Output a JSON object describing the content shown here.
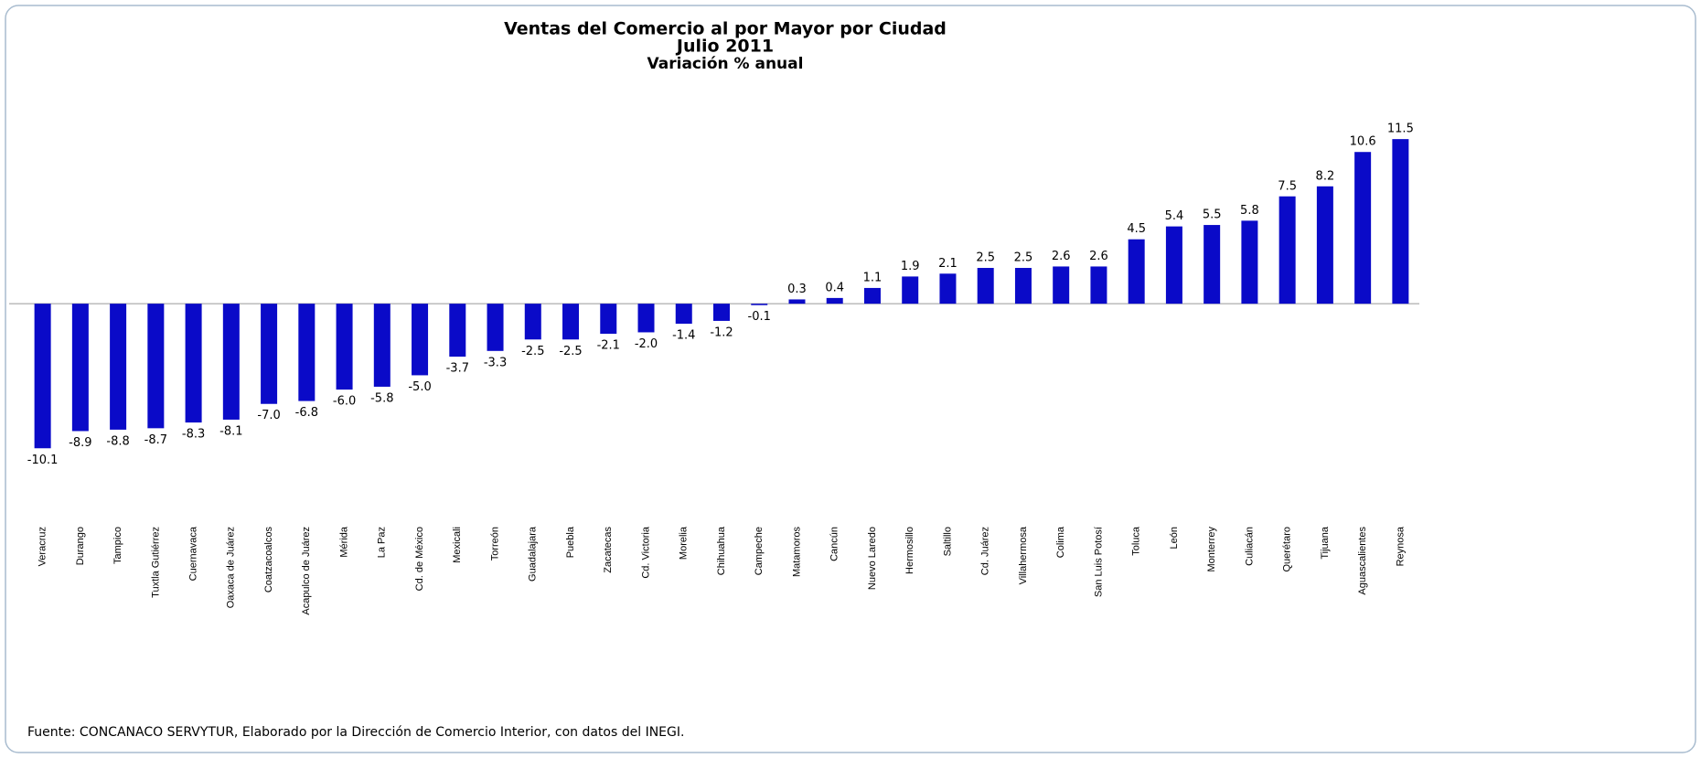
{
  "chart_data": {
    "type": "bar",
    "title": "Ventas del Comercio al por Mayor por Ciudad",
    "subtitle": "Julio 2011",
    "subtitle2": "Variación % anual",
    "source": "Fuente: CONCANACO SERVYTUR,  Elaborado por la Dirección de Comercio  Interior, con datos del INEGI.",
    "categories": [
      "Veracruz",
      "Durango",
      "Tampico",
      "Tuxtla Gutiérrez",
      "Cuernavaca",
      "Oaxaca de Juárez",
      "Coatzacoalcos",
      "Acapulco de Juárez",
      "Mérida",
      "La Paz",
      "Cd. de México",
      "Mexicali",
      "Torreón",
      "Guadalajara",
      "Puebla",
      "Zacatecas",
      "Cd. Victoria",
      "Morelia",
      "Chihuahua",
      "Campeche",
      "Matamoros",
      "Cancún",
      "Nuevo Laredo",
      "Hermosillo",
      "Saltillo",
      "Cd. Juárez",
      "Villahermosa",
      "Colima",
      "San Luis Potosí",
      "Toluca",
      "León",
      "Monterrey",
      "Culiacán",
      "Querétaro",
      "Tijuana",
      "Aguascalientes",
      "Reynosa"
    ],
    "values": [
      -10.1,
      -8.9,
      -8.8,
      -8.7,
      -8.3,
      -8.1,
      -7.0,
      -6.8,
      -6.0,
      -5.8,
      -5.0,
      -3.7,
      -3.3,
      -2.5,
      -2.5,
      -2.1,
      -2.0,
      -1.4,
      -1.2,
      -0.1,
      0.3,
      0.4,
      1.1,
      1.9,
      2.1,
      2.5,
      2.5,
      2.6,
      2.6,
      4.5,
      5.4,
      5.5,
      5.8,
      7.5,
      8.2,
      10.6,
      11.5
    ],
    "value_labels": [
      "-10.1",
      "-8.9",
      "-8.8",
      "-8.7",
      "-8.3",
      "-8.1",
      "-7.0",
      "-6.8",
      "-6.0",
      "-5.8",
      "-5.0",
      "-3.7",
      "-3.3",
      "-2.5",
      "-2.5",
      "-2.1",
      "-2.0",
      "-1.4",
      "-1.2",
      "-0.1",
      "0.3",
      "0.4",
      "1.1",
      "1.9",
      "2.1",
      "2.5",
      "2.5",
      "2.6",
      "2.6",
      "4.5",
      "5.4",
      "5.5",
      "5.8",
      "7.5",
      "8.2",
      "10.6",
      "11.5"
    ],
    "color": "#0a0ac8",
    "ylim": [
      -12,
      14
    ]
  }
}
